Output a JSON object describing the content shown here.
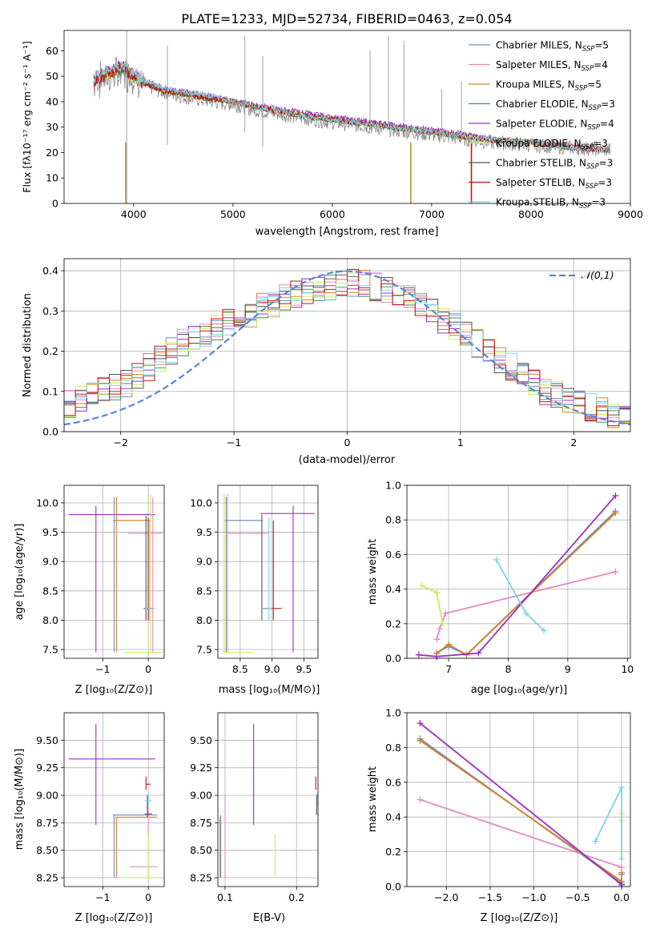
{
  "figure_title": "PLATE=1233, MJD=52734, FIBERID=0463, z=0.054",
  "series_colors": [
    "#6c8ebf",
    "#e68ac0",
    "#d9822b",
    "#4f8f55",
    "#9b30c0",
    "#c7ef5a",
    "#555555",
    "#cc1111",
    "#7fd3e0"
  ],
  "panels": {
    "spectrum": {
      "xlabel": "wavelength [Angstrom, rest frame]",
      "ylabel": "Flux [fλ10⁻¹⁷ erg cm⁻² s⁻¹ A⁻¹]",
      "legend": [
        "Chabrier MILES, N_SSP=5",
        "Salpeter MILES, N_SSP=4",
        "Kroupa MILES, N_SSP=5",
        "Chabrier ELODIE, N_SSP=3",
        "Salpeter ELODIE, N_SSP=4",
        "Kroupa ELODIE, N_SSP=3",
        "Chabrier STELIB, N_SSP=3",
        "Salpeter STELIB, N_SSP=3",
        "Kroupa STELIB, N_SSP=3"
      ],
      "xticks": [
        "4000",
        "5000",
        "6000",
        "7000",
        "8000",
        "9000"
      ],
      "yticks": [
        "0",
        "10",
        "20",
        "30",
        "40",
        "50",
        "60"
      ]
    },
    "residuals": {
      "xlabel": "(data-model)/error",
      "ylabel": "Normed distribution",
      "legend": "𝒩(0,1)",
      "xticks": [
        "−2",
        "−1",
        "0",
        "1",
        "2"
      ],
      "yticks": [
        "0.0",
        "0.1",
        "0.2",
        "0.3",
        "0.4"
      ]
    },
    "age_z": {
      "xlabel": "Z [log₁₀(Z/Z⊙)]",
      "ylabel": "age  [log₁₀(age/yr)]",
      "xticks": [
        "−1",
        "0"
      ],
      "yticks": [
        "7.5",
        "8.0",
        "8.5",
        "9.0",
        "9.5",
        "10.0"
      ]
    },
    "age_mass": {
      "xlabel": "mass [log₁₀(M/M⊙)]",
      "xticks": [
        "8.5",
        "9.0",
        "9.5"
      ],
      "yticks": [
        "7.5",
        "8.0",
        "8.5",
        "9.0",
        "9.5",
        "10.0"
      ]
    },
    "mw_age": {
      "xlabel": "age  [log₁₀(age/yr)]",
      "ylabel": "mass weight",
      "xticks": [
        "7",
        "8",
        "9",
        "10"
      ],
      "yticks": [
        "0.0",
        "0.2",
        "0.4",
        "0.6",
        "0.8",
        "1.0"
      ]
    },
    "mass_z": {
      "xlabel": "Z [log₁₀(Z/Z⊙)]",
      "ylabel": "mass [log₁₀(M/M⊙)]",
      "xticks": [
        "−1",
        "0"
      ],
      "yticks": [
        "8.25",
        "8.50",
        "8.75",
        "9.00",
        "9.25",
        "9.50"
      ]
    },
    "mass_ebv": {
      "xlabel": "E(B-V)",
      "xticks": [
        "0.1",
        "0.2"
      ],
      "yticks": [
        "8.25",
        "8.50",
        "8.75",
        "9.00",
        "9.25",
        "9.50"
      ]
    },
    "mw_z": {
      "xlabel": "Z [log₁₀(Z/Z⊙)]",
      "ylabel": "mass weight",
      "xticks": [
        "−2.0",
        "−1.5",
        "−1.0",
        "−0.5",
        "0.0"
      ],
      "yticks": [
        "0.0",
        "0.2",
        "0.4",
        "0.6",
        "0.8",
        "1.0"
      ]
    }
  },
  "chart_data": [
    {
      "type": "line",
      "description_ref": "spectrum",
      "xlim": [
        3300,
        9000
      ],
      "ylim": [
        0,
        68
      ],
      "x": [
        3600,
        3700,
        3800,
        3900,
        4000,
        4100,
        4200,
        4300,
        4500,
        4800,
        5000,
        5200,
        5500,
        5800,
        6000,
        6200,
        6400,
        6600,
        6800,
        7000,
        7200,
        7400,
        7600,
        8000,
        8400,
        8800
      ],
      "series": [
        {
          "name": "Chabrier MILES, N_SSP=5",
          "values": [
            48,
            50,
            52,
            53,
            50,
            47,
            46,
            44,
            43,
            41,
            40,
            38,
            36,
            34,
            33,
            32,
            31,
            30,
            29,
            28,
            27,
            26,
            25,
            24,
            22,
            21
          ]
        },
        {
          "name": "Salpeter MILES, N_SSP=4",
          "values": [
            49,
            51,
            53,
            54,
            51,
            48,
            47,
            45,
            44,
            42,
            40,
            38,
            36,
            34,
            33,
            32,
            31,
            30,
            29,
            28,
            27,
            26,
            25,
            24,
            23,
            21
          ]
        },
        {
          "name": "Kroupa MILES, N_SSP=5",
          "values": [
            48,
            50,
            52,
            53,
            50,
            47,
            46,
            44,
            43,
            41,
            40,
            38,
            36,
            34,
            33,
            32,
            31,
            30,
            29,
            28,
            27,
            26,
            25,
            24,
            22,
            21
          ]
        },
        {
          "name": "Chabrier ELODIE, N_SSP=3",
          "values": [
            48,
            51,
            52,
            52,
            50,
            48,
            46,
            44,
            43,
            41,
            40,
            38,
            36,
            34,
            33,
            32,
            31,
            30,
            29,
            28,
            27,
            26,
            25,
            24,
            22,
            21
          ]
        },
        {
          "name": "Salpeter ELODIE, N_SSP=4",
          "values": [
            49,
            51,
            53,
            54,
            51,
            48,
            47,
            45,
            44,
            42,
            40,
            39,
            37,
            35,
            34,
            33,
            32,
            31,
            30,
            29,
            28,
            27,
            25,
            24,
            22,
            21
          ]
        },
        {
          "name": "Kroupa ELODIE, N_SSP=3",
          "values": [
            48,
            50,
            52,
            53,
            50,
            48,
            46,
            44,
            43,
            41,
            40,
            38,
            36,
            34,
            33,
            32,
            31,
            30,
            29,
            28,
            27,
            26,
            25,
            24,
            22,
            21
          ]
        },
        {
          "name": "Chabrier STELIB, N_SSP=3",
          "values": [
            48,
            50,
            52,
            53,
            50,
            47,
            46,
            44,
            43,
            41,
            40,
            38,
            36,
            34,
            33,
            32,
            31,
            30,
            29,
            28,
            27,
            26,
            25,
            24,
            22,
            21
          ]
        },
        {
          "name": "Salpeter STELIB, N_SSP=3",
          "values": [
            48,
            50,
            52,
            53,
            50,
            47,
            46,
            44,
            43,
            41,
            40,
            38,
            36,
            34,
            33,
            32,
            31,
            30,
            29,
            28,
            27,
            26,
            25,
            24,
            22,
            21
          ]
        },
        {
          "name": "Kroupa STELIB, N_SSP=3",
          "values": [
            49,
            51,
            53,
            54,
            51,
            48,
            47,
            45,
            44,
            42,
            40,
            38,
            36,
            34,
            33,
            32,
            31,
            30,
            29,
            28,
            27,
            26,
            25,
            24,
            22,
            21
          ]
        }
      ],
      "data_series": {
        "name": "",
        "values": [
          47,
          49,
          50,
          52,
          50,
          47,
          45,
          44,
          42,
          40,
          39,
          37,
          35,
          33,
          32,
          31,
          30,
          29,
          28,
          27,
          26,
          25,
          24,
          23,
          22,
          21
        ]
      }
    },
    {
      "type": "line",
      "description_ref": "residuals",
      "xlim": [
        -2.5,
        2.5
      ],
      "ylim": [
        0,
        0.43
      ],
      "normal_curve": {
        "name": "𝒩(0,1)",
        "mean": 0,
        "sigma": 1
      },
      "bin_edges_start": -2.5,
      "bin_width": 0.1,
      "bins": 50,
      "histogram_profile": [
        0.07,
        0.08,
        0.09,
        0.1,
        0.11,
        0.12,
        0.14,
        0.16,
        0.18,
        0.2,
        0.22,
        0.23,
        0.24,
        0.26,
        0.27,
        0.28,
        0.29,
        0.31,
        0.32,
        0.33,
        0.34,
        0.35,
        0.36,
        0.36,
        0.37,
        0.37,
        0.37,
        0.36,
        0.35,
        0.34,
        0.33,
        0.32,
        0.3,
        0.28,
        0.26,
        0.24,
        0.22,
        0.2,
        0.18,
        0.16,
        0.14,
        0.12,
        0.1,
        0.09,
        0.08,
        0.07,
        0.06,
        0.05,
        0.04,
        0.04
      ]
    },
    {
      "type": "scatter",
      "description_ref": "mw_age",
      "xlim": [
        6.3,
        10.05
      ],
      "ylim": [
        0,
        1.0
      ],
      "series": [
        {
          "name": "Chabrier MILES, N_SSP=5",
          "x": [
            6.8,
            7.0,
            7.3,
            9.8
          ],
          "y": [
            0.03,
            0.07,
            0.02,
            0.85
          ]
        },
        {
          "name": "Salpeter MILES, N_SSP=4",
          "x": [
            6.8,
            6.85,
            6.95,
            9.8
          ],
          "y": [
            0.11,
            0.17,
            0.26,
            0.5
          ]
        },
        {
          "name": "Kroupa MILES, N_SSP=5",
          "x": [
            6.8,
            7.0,
            7.3,
            9.8
          ],
          "y": [
            0.03,
            0.08,
            0.02,
            0.84
          ]
        },
        {
          "name": "Salpeter ELODIE, N_SSP=4",
          "x": [
            6.5,
            6.8,
            7.5,
            9.8
          ],
          "y": [
            0.02,
            0.01,
            0.03,
            0.94
          ]
        },
        {
          "name": "Kroupa ELODIE, N_SSP=3",
          "x": [
            6.55,
            6.8,
            6.9
          ],
          "y": [
            0.42,
            0.38,
            0.2
          ]
        },
        {
          "name": "Kroupa STELIB, N_SSP=3",
          "x": [
            7.8,
            8.3,
            8.6
          ],
          "y": [
            0.57,
            0.26,
            0.16
          ]
        }
      ]
    },
    {
      "type": "scatter",
      "description_ref": "mw_z",
      "xlim": [
        -2.45,
        0.1
      ],
      "ylim": [
        0,
        1.0
      ],
      "series": [
        {
          "name": "Chabrier MILES, N_SSP=5",
          "x": [
            -2.3,
            0.0,
            0.0
          ],
          "y": [
            0.85,
            0.02,
            0.07
          ]
        },
        {
          "name": "Salpeter MILES, N_SSP=4",
          "x": [
            -2.3,
            0.0
          ],
          "y": [
            0.5,
            0.11
          ]
        },
        {
          "name": "Kroupa MILES, N_SSP=5",
          "x": [
            -2.3,
            0.0,
            0.0
          ],
          "y": [
            0.84,
            0.03,
            0.08
          ]
        },
        {
          "name": "Salpeter ELODIE, N_SSP=4",
          "x": [
            -2.3,
            0.0
          ],
          "y": [
            0.94,
            0.01
          ]
        },
        {
          "name": "Kroupa ELODIE, N_SSP=3",
          "x": [
            0.0,
            0.0,
            0.0
          ],
          "y": [
            0.42,
            0.38,
            0.2
          ]
        },
        {
          "name": "Kroupa STELIB, N_SSP=3",
          "x": [
            -0.3,
            0.0,
            0.0
          ],
          "y": [
            0.26,
            0.57,
            0.16
          ]
        }
      ]
    }
  ]
}
